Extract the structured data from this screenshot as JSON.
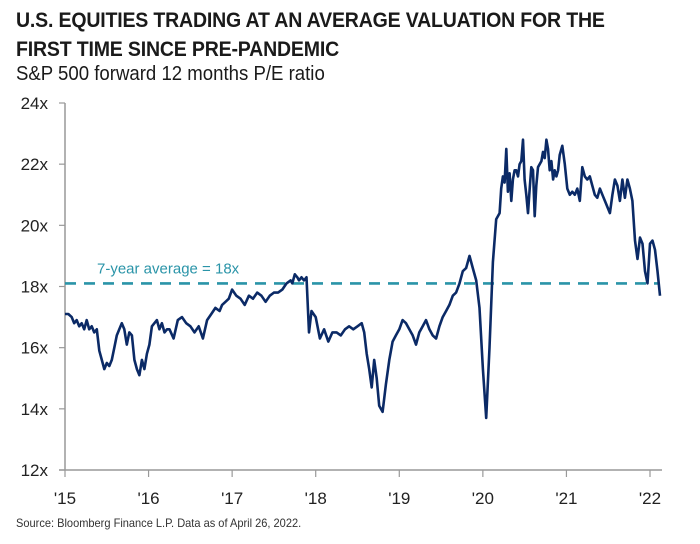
{
  "header": {
    "title": "U.S. EQUITIES TRADING AT AN AVERAGE VALUATION FOR THE FIRST TIME SINCE PRE-PANDEMIC",
    "subtitle": "S&P 500 forward 12 months P/E ratio"
  },
  "footer": {
    "source": "Source: Bloomberg Finance L.P. Data as of April 26, 2022."
  },
  "colors": {
    "series": "#0b2a66",
    "average": "#2a94a8",
    "axis": "#999999"
  },
  "chart_data": {
    "type": "line",
    "title": "U.S. EQUITIES TRADING AT AN AVERAGE VALUATION FOR THE FIRST TIME SINCE PRE-PANDEMIC",
    "subtitle": "S&P 500 forward 12 months P/E ratio",
    "xlabel": "",
    "ylabel": "",
    "xlim": [
      2015,
      2022.15
    ],
    "ylim": [
      12,
      24
    ],
    "grid": false,
    "x_ticks": [
      2015,
      2016,
      2017,
      2018,
      2019,
      2020,
      2021,
      2022
    ],
    "x_tick_labels": [
      "'15",
      "'16",
      "'17",
      "'18",
      "'19",
      "'20",
      "'21",
      "'22"
    ],
    "y_ticks": [
      12,
      14,
      16,
      18,
      20,
      22,
      24
    ],
    "y_tick_labels": [
      "12x",
      "14x",
      "16x",
      "18x",
      "20x",
      "22x",
      "24x"
    ],
    "reference_line": {
      "value": 18.1,
      "label": "7-year average = 18x",
      "style": "dashed"
    },
    "series": [
      {
        "name": "S&P 500 forward P/E",
        "x": [
          2015.0,
          2015.04,
          2015.08,
          2015.11,
          2015.14,
          2015.17,
          2015.2,
          2015.23,
          2015.26,
          2015.29,
          2015.32,
          2015.35,
          2015.38,
          2015.41,
          2015.44,
          2015.47,
          2015.5,
          2015.53,
          2015.56,
          2015.59,
          2015.62,
          2015.65,
          2015.68,
          2015.71,
          2015.74,
          2015.77,
          2015.8,
          2015.83,
          2015.86,
          2015.89,
          2015.92,
          2015.95,
          2015.98,
          2016.01,
          2016.04,
          2016.07,
          2016.1,
          2016.13,
          2016.16,
          2016.19,
          2016.22,
          2016.25,
          2016.3,
          2016.35,
          2016.4,
          2016.45,
          2016.5,
          2016.55,
          2016.6,
          2016.65,
          2016.7,
          2016.75,
          2016.8,
          2016.85,
          2016.88,
          2016.92,
          2016.96,
          2017.0,
          2017.05,
          2017.1,
          2017.15,
          2017.2,
          2017.25,
          2017.3,
          2017.35,
          2017.4,
          2017.45,
          2017.5,
          2017.55,
          2017.6,
          2017.65,
          2017.7,
          2017.72,
          2017.75,
          2017.78,
          2017.8,
          2017.83,
          2017.86,
          2017.89,
          2017.92,
          2017.95,
          2018.0,
          2018.05,
          2018.1,
          2018.15,
          2018.2,
          2018.25,
          2018.3,
          2018.35,
          2018.4,
          2018.45,
          2018.5,
          2018.55,
          2018.58,
          2018.61,
          2018.64,
          2018.67,
          2018.7,
          2018.73,
          2018.76,
          2018.8,
          2018.84,
          2018.88,
          2018.92,
          2018.96,
          2019.0,
          2019.04,
          2019.08,
          2019.12,
          2019.16,
          2019.2,
          2019.24,
          2019.28,
          2019.32,
          2019.36,
          2019.4,
          2019.44,
          2019.48,
          2019.52,
          2019.56,
          2019.6,
          2019.64,
          2019.68,
          2019.72,
          2019.76,
          2019.8,
          2019.84,
          2019.88,
          2019.92,
          2019.96,
          2020.0,
          2020.04,
          2020.08,
          2020.12,
          2020.16,
          2020.2,
          2020.22,
          2020.24,
          2020.26,
          2020.28,
          2020.3,
          2020.32,
          2020.34,
          2020.36,
          2020.38,
          2020.4,
          2020.42,
          2020.44,
          2020.46,
          2020.48,
          2020.5,
          2020.52,
          2020.54,
          2020.56,
          2020.58,
          2020.6,
          2020.62,
          2020.64,
          2020.66,
          2020.68,
          2020.7,
          2020.72,
          2020.74,
          2020.76,
          2020.78,
          2020.8,
          2020.82,
          2020.84,
          2020.86,
          2020.88,
          2020.9,
          2020.92,
          2020.95,
          2020.98,
          2021.01,
          2021.04,
          2021.07,
          2021.1,
          2021.13,
          2021.16,
          2021.19,
          2021.22,
          2021.25,
          2021.28,
          2021.31,
          2021.34,
          2021.37,
          2021.4,
          2021.43,
          2021.46,
          2021.49,
          2021.52,
          2021.55,
          2021.58,
          2021.61,
          2021.64,
          2021.67,
          2021.7,
          2021.73,
          2021.76,
          2021.79,
          2021.82,
          2021.85,
          2021.88,
          2021.91,
          2021.94,
          2021.97,
          2022.0,
          2022.03,
          2022.06,
          2022.09,
          2022.12
        ],
        "values": [
          17.1,
          17.1,
          17.0,
          16.8,
          16.9,
          16.7,
          16.8,
          16.6,
          16.9,
          16.6,
          16.7,
          16.5,
          16.6,
          15.9,
          15.6,
          15.3,
          15.5,
          15.4,
          15.6,
          16.0,
          16.4,
          16.6,
          16.8,
          16.6,
          16.1,
          16.5,
          16.4,
          15.6,
          15.3,
          15.1,
          15.6,
          15.3,
          15.8,
          16.1,
          16.7,
          16.8,
          16.9,
          16.6,
          16.8,
          16.5,
          16.6,
          16.6,
          16.3,
          16.9,
          17.0,
          16.8,
          16.7,
          16.5,
          16.7,
          16.3,
          16.9,
          17.1,
          17.3,
          17.2,
          17.4,
          17.5,
          17.6,
          17.9,
          17.7,
          17.6,
          17.4,
          17.7,
          17.6,
          17.8,
          17.7,
          17.5,
          17.7,
          17.8,
          17.8,
          17.9,
          18.1,
          18.2,
          18.1,
          18.4,
          18.3,
          18.2,
          18.3,
          18.2,
          18.3,
          16.5,
          17.2,
          17.0,
          16.3,
          16.6,
          16.2,
          16.5,
          16.5,
          16.4,
          16.6,
          16.7,
          16.6,
          16.7,
          16.8,
          16.5,
          15.8,
          15.3,
          14.7,
          15.6,
          15.0,
          14.1,
          13.9,
          14.8,
          15.6,
          16.2,
          16.4,
          16.6,
          16.9,
          16.8,
          16.6,
          16.4,
          16.1,
          16.5,
          16.7,
          16.9,
          16.6,
          16.4,
          16.3,
          16.7,
          17.0,
          17.2,
          17.4,
          17.7,
          17.8,
          18.1,
          18.5,
          18.6,
          19.0,
          18.6,
          18.2,
          17.3,
          15.3,
          13.7,
          16.0,
          18.8,
          20.2,
          20.4,
          21.2,
          21.6,
          21.4,
          22.5,
          21.1,
          21.7,
          20.8,
          21.5,
          21.8,
          21.8,
          21.6,
          22.0,
          22.1,
          22.8,
          21.5,
          21.0,
          20.4,
          21.2,
          21.9,
          21.8,
          20.3,
          21.3,
          21.9,
          22.0,
          22.1,
          22.4,
          22.2,
          22.8,
          22.5,
          21.8,
          22.1,
          21.5,
          21.8,
          21.6,
          21.8,
          22.3,
          22.6,
          22.0,
          21.2,
          21.0,
          21.1,
          21.0,
          21.2,
          20.8,
          21.9,
          21.6,
          21.5,
          21.6,
          21.3,
          21.0,
          20.9,
          21.2,
          21.0,
          20.8,
          20.6,
          20.4,
          21.0,
          21.5,
          21.3,
          20.8,
          21.5,
          20.9,
          21.5,
          21.2,
          20.8,
          19.5,
          18.9,
          19.6,
          19.4,
          18.5,
          18.1,
          19.4,
          19.5,
          19.2,
          18.5,
          17.7
        ]
      }
    ]
  }
}
